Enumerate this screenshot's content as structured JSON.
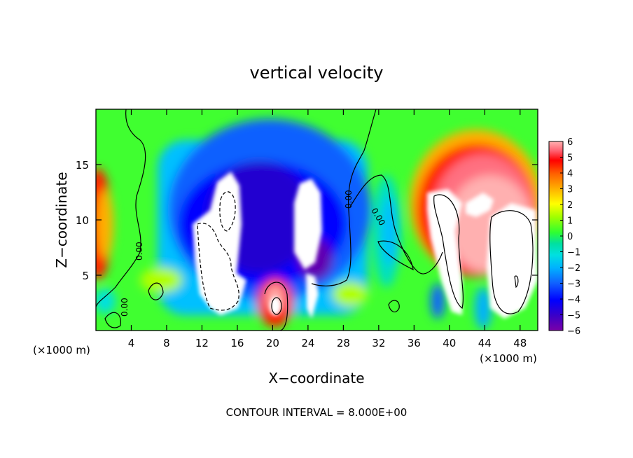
{
  "chart_data": {
    "type": "heatmap",
    "title": "vertical velocity",
    "xlabel": "X−coordinate",
    "ylabel": "Z−coordinate",
    "x_unit_left": "(×1000 m)",
    "x_unit_right": "(×1000 m)",
    "footer": "CONTOUR INTERVAL = 8.000E+00",
    "xlim": [
      0,
      50
    ],
    "ylim": [
      0,
      20
    ],
    "x_ticks": [
      "4",
      "8",
      "12",
      "16",
      "20",
      "24",
      "28",
      "32",
      "36",
      "40",
      "44",
      "48"
    ],
    "y_ticks": [
      "5",
      "10",
      "15"
    ],
    "colorbar": {
      "range": [
        -6,
        6
      ],
      "ticks": [
        "6",
        "5",
        "4",
        "3",
        "2",
        "1",
        "0",
        "−1",
        "−2",
        "−3",
        "−4",
        "−5",
        "−6"
      ],
      "colors": [
        "#7a00a8",
        "#3a00c8",
        "#0000ff",
        "#1060ff",
        "#00b0ff",
        "#00e0e0",
        "#00e0a0",
        "#30ff30",
        "#a0ff00",
        "#ffff00",
        "#ffb000",
        "#ff6000",
        "#ff0000",
        "#ff6070",
        "#ffb0b0"
      ]
    },
    "contour_labels": [
      "0.00",
      "0.00",
      "0.00",
      "0.00"
    ],
    "grid": false
  }
}
